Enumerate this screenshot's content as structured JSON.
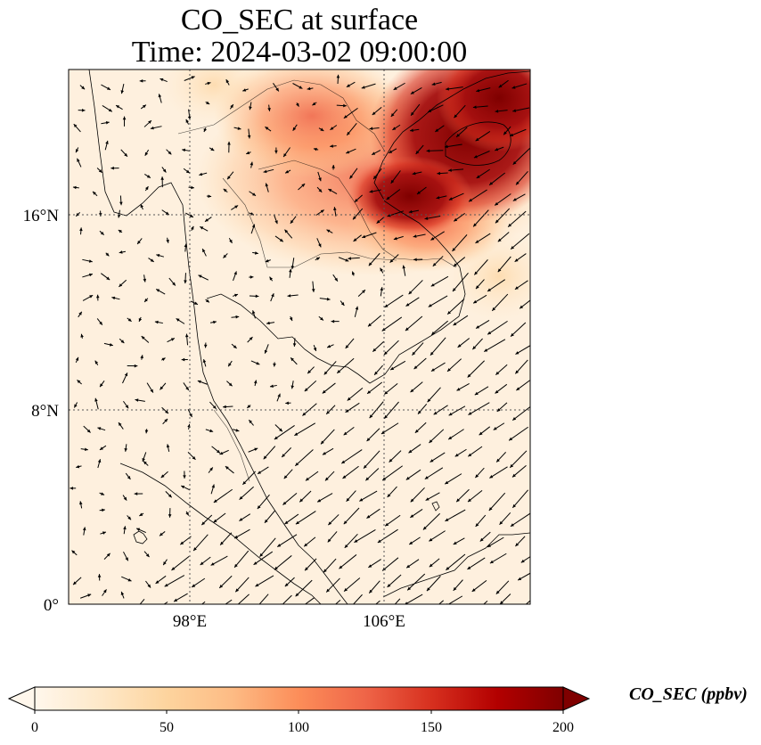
{
  "title": {
    "line1": "CO_SEC at surface",
    "line2": "Time: 2024-03-02 09:00:00"
  },
  "map": {
    "variable": "CO_SEC",
    "level": "surface",
    "extent": {
      "lon": [
        93,
        112
      ],
      "lat": [
        0,
        22
      ]
    },
    "lat_ticks": [
      {
        "value": 0,
        "label": "0°"
      },
      {
        "value": 8,
        "label": "8°N"
      },
      {
        "value": 16,
        "label": "16°N"
      }
    ],
    "lon_ticks": [
      {
        "value": 98,
        "label": "98°E"
      },
      {
        "value": 106,
        "label": "106°E"
      }
    ],
    "gridlines": "dotted",
    "overlay": "wind-vectors"
  },
  "colorbar": {
    "label": "CO_SEC (ppbv)",
    "min": 0,
    "max": 200,
    "ticks": [
      "0",
      "50",
      "100",
      "150",
      "200"
    ],
    "colormap": "OrRd",
    "colors": [
      "#fff7ec",
      "#fee8c8",
      "#fdd49e",
      "#fdbb84",
      "#fc8d59",
      "#ef6548",
      "#d7301f",
      "#b30000",
      "#7f0000"
    ],
    "extend": "both"
  }
}
